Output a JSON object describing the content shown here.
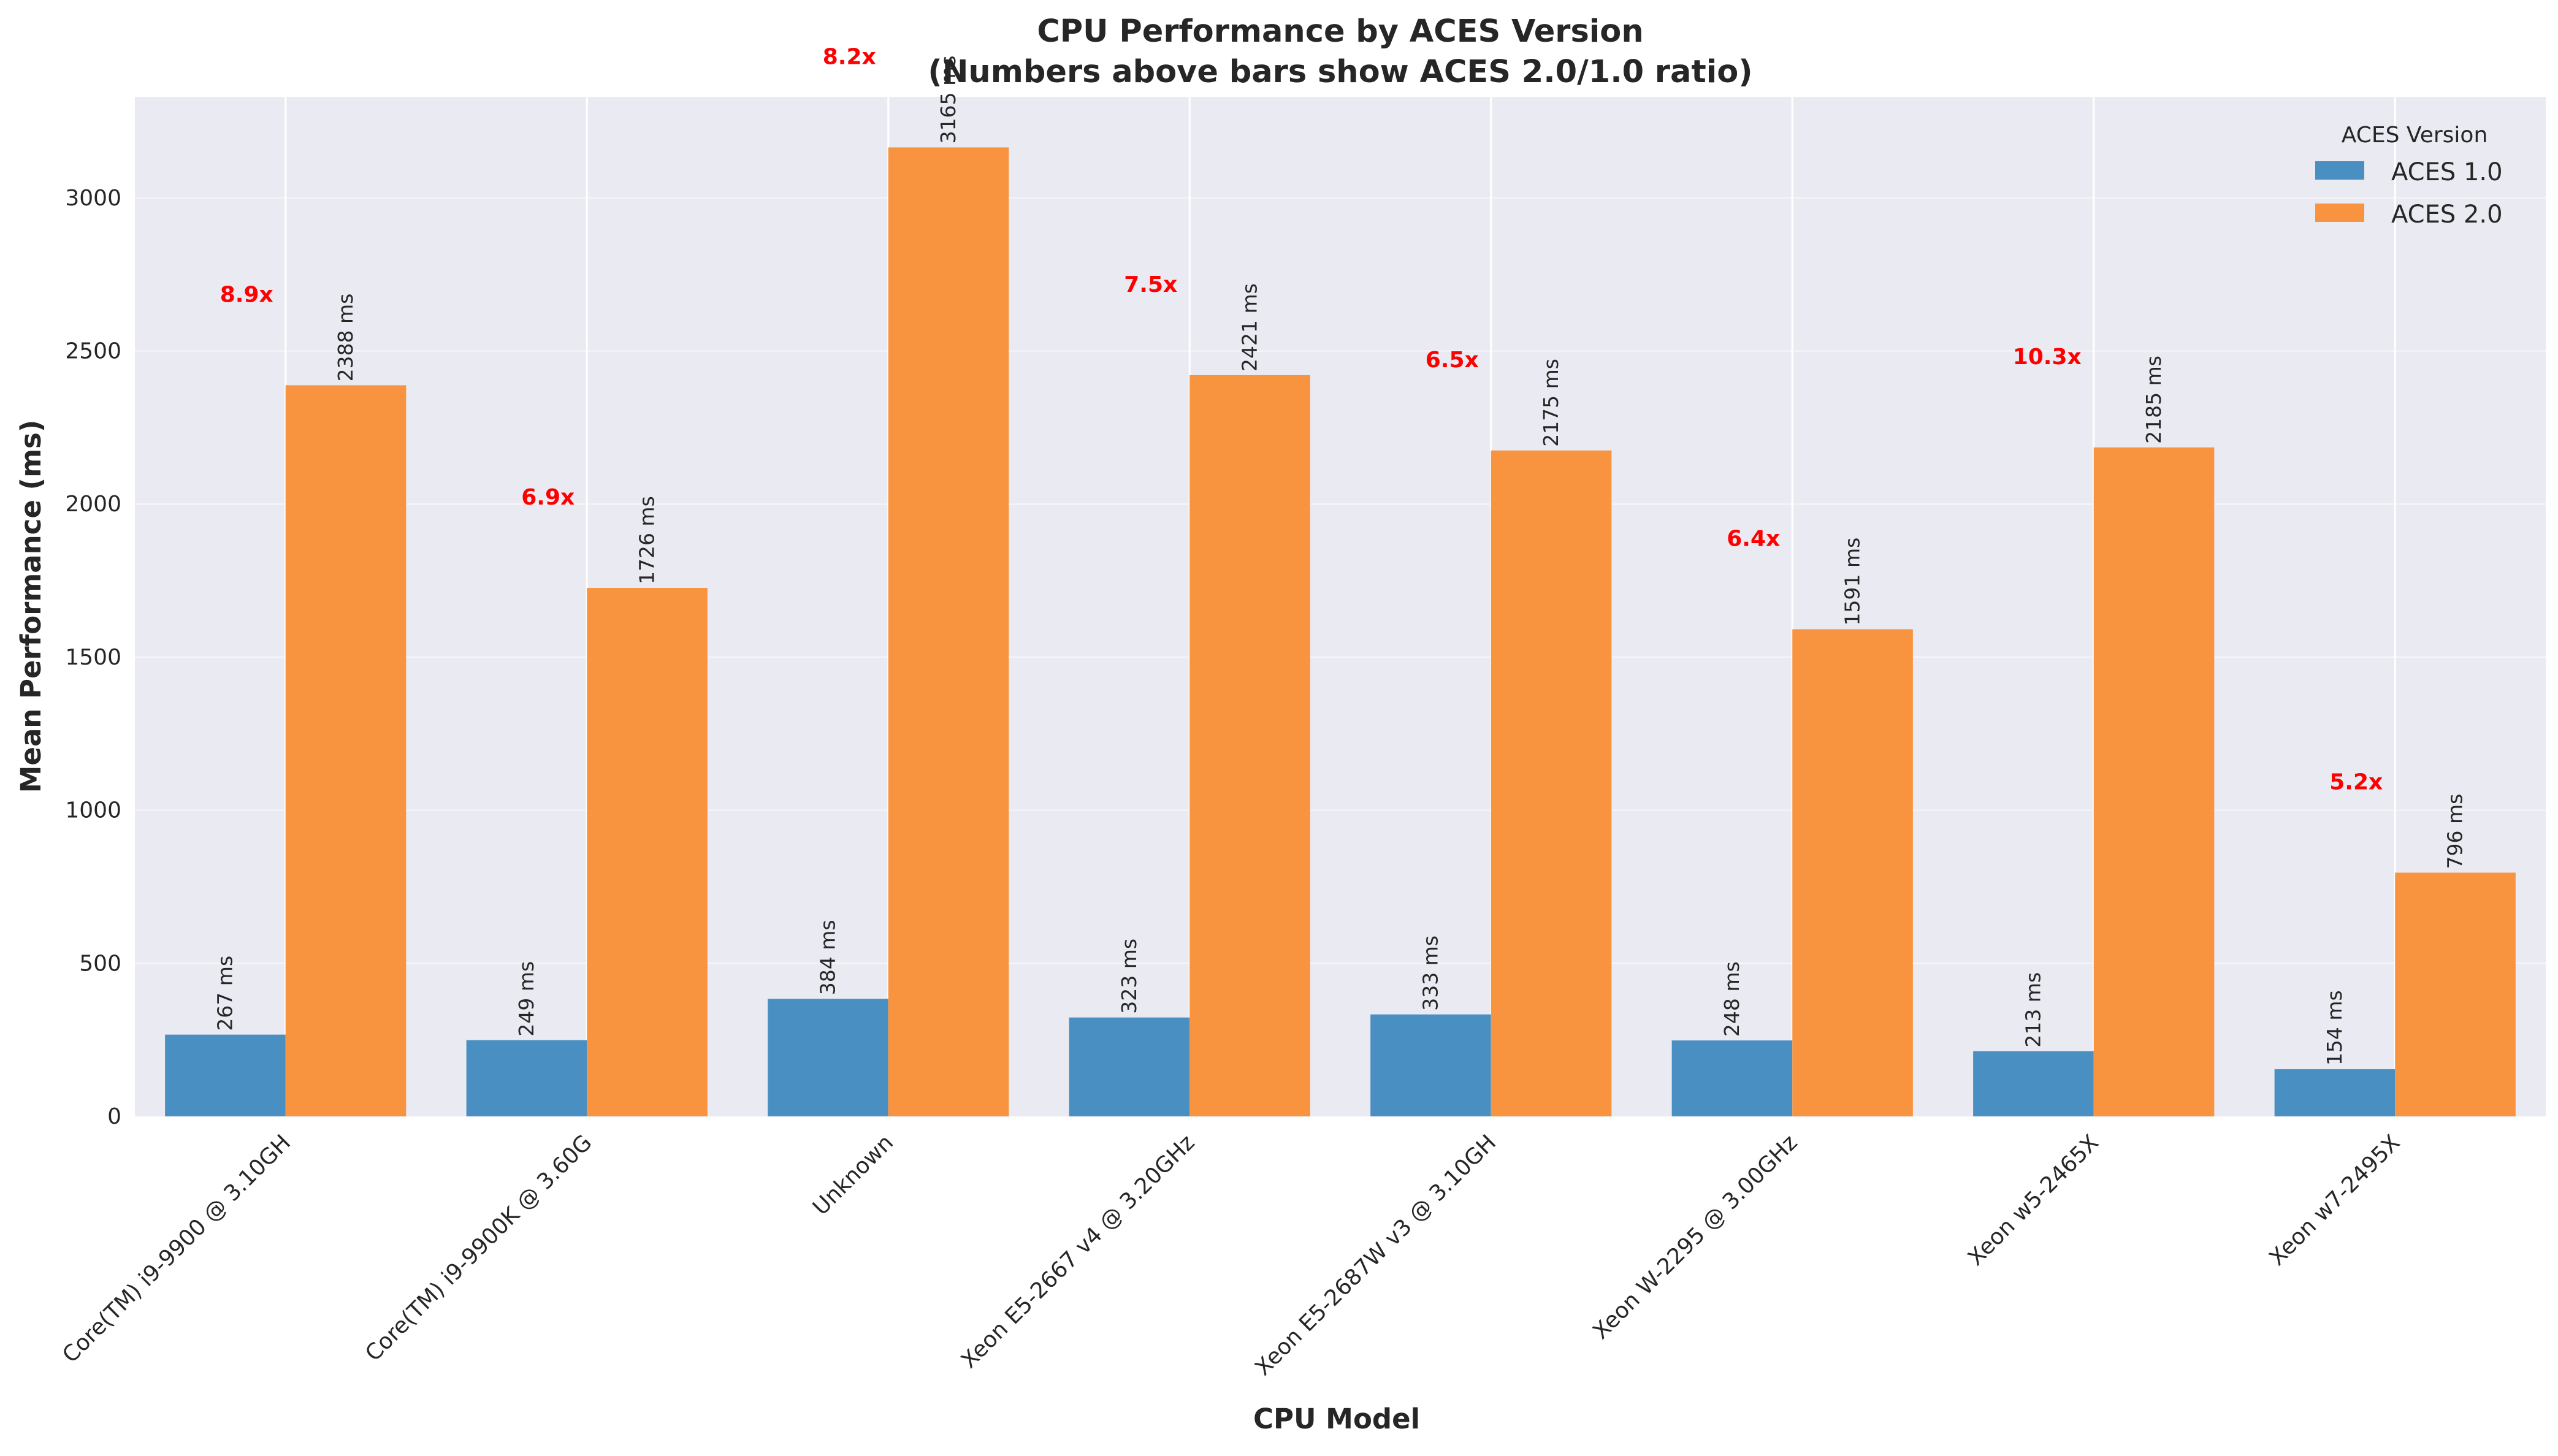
{
  "chart_data": {
    "type": "bar",
    "title": "CPU Performance by ACES Version",
    "subtitle": "(Numbers above bars show ACES 2.0/1.0 ratio)",
    "xlabel": "CPU Model",
    "ylabel": "Mean Performance (ms)",
    "ylim": [
      0,
      3330
    ],
    "yticks": [
      0,
      500,
      1000,
      1500,
      2000,
      2500,
      3000
    ],
    "grid": true,
    "legend": {
      "title": "ACES Version",
      "placement": "top-right"
    },
    "value_suffix": " ms",
    "categories": [
      "Core(TM) i9-9900 @ 3.10GH",
      "Core(TM) i9-9900K @ 3.60G",
      "Unknown",
      "Xeon E5-2667 v4 @ 3.20GHz",
      "Xeon E5-2687W v3 @ 3.10GH",
      "Xeon W-2295 @ 3.00GHz",
      "Xeon w5-2465X",
      "Xeon w7-2495X"
    ],
    "series": [
      {
        "name": "ACES 1.0",
        "color": "#4a8fc1",
        "values": [
          267,
          249,
          384,
          323,
          333,
          248,
          213,
          154
        ]
      },
      {
        "name": "ACES 2.0",
        "color": "#f8943f",
        "values": [
          2388,
          1726,
          3165,
          2421,
          2175,
          1591,
          2185,
          796
        ]
      }
    ],
    "ratio_labels": [
      "8.9x",
      "6.9x",
      "8.2x",
      "7.5x",
      "6.5x",
      "6.4x",
      "10.3x",
      "5.2x"
    ],
    "ratio_color": "#ff0000"
  }
}
